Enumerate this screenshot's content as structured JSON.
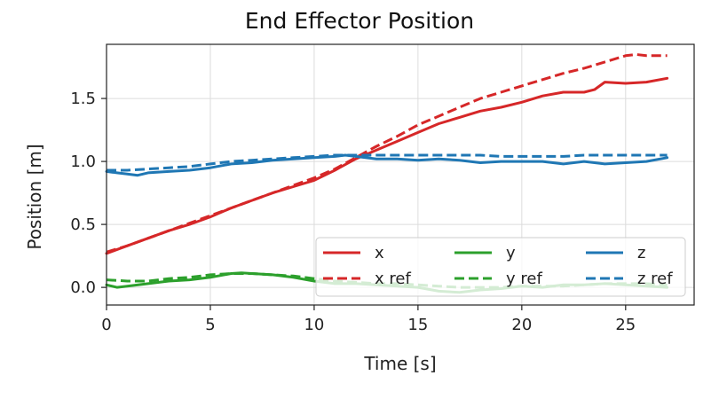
{
  "chart_data": {
    "type": "line",
    "title": "End Effector Position",
    "xlabel": "Time [s]",
    "ylabel": "Position [m]",
    "xlim": [
      0,
      28.3
    ],
    "ylim": [
      -0.14,
      1.93
    ],
    "xticks": [
      0,
      5,
      10,
      15,
      20,
      25
    ],
    "yticks": [
      0.0,
      0.5,
      1.0,
      1.5
    ],
    "ytick_labels": [
      "0.0",
      "0.5",
      "1.0",
      "1.5"
    ],
    "xtick_labels": [
      "0",
      "5",
      "10",
      "15",
      "20",
      "25"
    ],
    "grid": true,
    "legend": {
      "placement": "lower-right",
      "columns": 3
    },
    "series": [
      {
        "name": "x",
        "color": "#d62728",
        "dash": "solid",
        "x": [
          0,
          1,
          2,
          3,
          4,
          5,
          6,
          7,
          8,
          9,
          10,
          11,
          12,
          13,
          14,
          15,
          16,
          17,
          18,
          19,
          20,
          21,
          22,
          23,
          23.5,
          24,
          25,
          26,
          27
        ],
        "y": [
          0.27,
          0.33,
          0.39,
          0.45,
          0.5,
          0.56,
          0.63,
          0.69,
          0.75,
          0.8,
          0.85,
          0.93,
          1.02,
          1.09,
          1.16,
          1.23,
          1.3,
          1.35,
          1.4,
          1.43,
          1.47,
          1.52,
          1.55,
          1.55,
          1.57,
          1.63,
          1.62,
          1.63,
          1.66
        ]
      },
      {
        "name": "x ref",
        "color": "#d62728",
        "dash": "dashed",
        "x": [
          0,
          1,
          2,
          3,
          4,
          5,
          6,
          7,
          8,
          9,
          10,
          11,
          12,
          13,
          14,
          15,
          16,
          17,
          18,
          19,
          20,
          21,
          22,
          23,
          24,
          25,
          25.5,
          26,
          27
        ],
        "y": [
          0.28,
          0.33,
          0.39,
          0.45,
          0.51,
          0.57,
          0.63,
          0.69,
          0.75,
          0.81,
          0.87,
          0.94,
          1.03,
          1.12,
          1.2,
          1.29,
          1.36,
          1.43,
          1.5,
          1.55,
          1.6,
          1.65,
          1.7,
          1.74,
          1.79,
          1.84,
          1.85,
          1.84,
          1.84
        ]
      },
      {
        "name": "y",
        "color": "#2ca02c",
        "dash": "solid",
        "x": [
          0,
          0.5,
          1,
          2,
          3,
          4,
          5,
          6,
          6.5,
          7,
          8,
          9,
          10,
          11,
          12,
          13,
          14,
          15,
          16,
          17,
          18,
          19,
          20,
          21,
          22,
          23,
          24,
          25,
          26,
          27
        ],
        "y": [
          0.02,
          0.0,
          0.01,
          0.03,
          0.05,
          0.06,
          0.08,
          0.11,
          0.115,
          0.11,
          0.1,
          0.08,
          0.05,
          0.03,
          0.03,
          0.02,
          0.01,
          0.0,
          -0.03,
          -0.04,
          -0.02,
          -0.01,
          0.01,
          0.0,
          0.02,
          0.02,
          0.03,
          0.02,
          0.01,
          0.0
        ]
      },
      {
        "name": "y ref",
        "color": "#2ca02c",
        "dash": "dashed",
        "x": [
          0,
          1,
          2,
          3,
          4,
          5,
          6,
          7,
          8,
          9,
          10,
          11,
          12,
          13,
          14,
          15,
          16,
          17,
          18,
          19,
          20,
          21,
          22,
          23,
          24,
          25,
          26,
          27
        ],
        "y": [
          0.06,
          0.05,
          0.05,
          0.07,
          0.08,
          0.1,
          0.11,
          0.11,
          0.1,
          0.09,
          0.07,
          0.05,
          0.04,
          0.03,
          0.03,
          0.02,
          0.01,
          0.0,
          0.0,
          0.0,
          0.01,
          0.01,
          0.01,
          0.02,
          0.03,
          0.03,
          0.03,
          0.02
        ]
      },
      {
        "name": "z",
        "color": "#1f77b4",
        "dash": "solid",
        "x": [
          0,
          0.5,
          1,
          1.5,
          2,
          3,
          4,
          5,
          6,
          7,
          8,
          9,
          10,
          11,
          11.5,
          12,
          13,
          14,
          15,
          16,
          17,
          18,
          19,
          20,
          21,
          22,
          23,
          24,
          25,
          26,
          27
        ],
        "y": [
          0.92,
          0.91,
          0.9,
          0.89,
          0.91,
          0.92,
          0.93,
          0.95,
          0.98,
          0.99,
          1.01,
          1.02,
          1.03,
          1.04,
          1.05,
          1.04,
          1.02,
          1.02,
          1.01,
          1.02,
          1.01,
          0.99,
          1.0,
          1.0,
          1.0,
          0.98,
          1.0,
          0.98,
          0.99,
          1.0,
          1.03
        ]
      },
      {
        "name": "z ref",
        "color": "#1f77b4",
        "dash": "dashed",
        "x": [
          0,
          1,
          2,
          3,
          4,
          5,
          6,
          7,
          8,
          9,
          10,
          11,
          12,
          13,
          14,
          15,
          16,
          17,
          18,
          19,
          20,
          21,
          22,
          23,
          24,
          25,
          26,
          27
        ],
        "y": [
          0.93,
          0.93,
          0.94,
          0.95,
          0.96,
          0.98,
          1.0,
          1.01,
          1.02,
          1.03,
          1.04,
          1.05,
          1.05,
          1.05,
          1.05,
          1.05,
          1.05,
          1.05,
          1.05,
          1.04,
          1.04,
          1.04,
          1.04,
          1.05,
          1.05,
          1.05,
          1.05,
          1.05
        ]
      }
    ]
  }
}
